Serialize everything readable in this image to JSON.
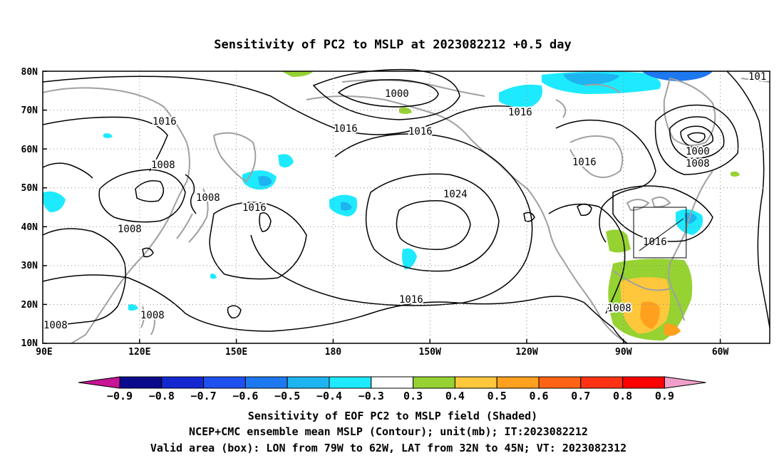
{
  "title": "Sensitivity of PC2 to MSLP at 2023082212 +0.5 day",
  "map": {
    "lat_labels": [
      "80N",
      "70N",
      "60N",
      "50N",
      "40N",
      "30N",
      "20N",
      "10N"
    ],
    "lon_labels": [
      "90E",
      "120E",
      "150E",
      "180",
      "150W",
      "120W",
      "90W",
      "60W"
    ],
    "valid_box": {
      "lon_from": -79,
      "lon_to": -62,
      "lat_from": 32,
      "lat_to": 45
    },
    "contour_labels": [
      {
        "text": "1000"
      },
      {
        "text": "1016"
      },
      {
        "text": "1016"
      },
      {
        "text": "1016"
      },
      {
        "text": "1016"
      },
      {
        "text": "1008"
      },
      {
        "text": "1008"
      },
      {
        "text": "1008"
      },
      {
        "text": "1016"
      },
      {
        "text": "1024"
      },
      {
        "text": "1016"
      },
      {
        "text": "1000"
      },
      {
        "text": "1008"
      },
      {
        "text": "1016"
      },
      {
        "text": "1016"
      },
      {
        "text": "1008"
      },
      {
        "text": "1008"
      },
      {
        "text": "1008"
      },
      {
        "text": "101"
      }
    ]
  },
  "colorbar": {
    "labels": [
      "-0.9",
      "-0.8",
      "-0.7",
      "-0.6",
      "-0.5",
      "-0.4",
      "-0.3",
      "0.3",
      "0.4",
      "0.5",
      "0.6",
      "0.7",
      "0.8",
      "0.9"
    ],
    "colors": [
      "#0a0a8c",
      "#1428d2",
      "#1e50f0",
      "#1e78f0",
      "#1eb4f0",
      "#1eeaff",
      "#ffffff",
      "#96d232",
      "#ffc83c",
      "#ffa01e",
      "#ff6414",
      "#ff3214",
      "#ff0000"
    ],
    "end_low_color": "#c81496",
    "end_high_color": "#f0a0c8"
  },
  "captions": {
    "line1": "Sensitivity of EOF PC2 to MSLP field (Shaded)",
    "line2": "NCEP+CMC ensemble mean MSLP (Contour); unit(mb); IT:2023082212",
    "line3": "Valid area (box): LON from 79W to 62W, LAT from 32N to 45N; VT: 2023082312"
  }
}
